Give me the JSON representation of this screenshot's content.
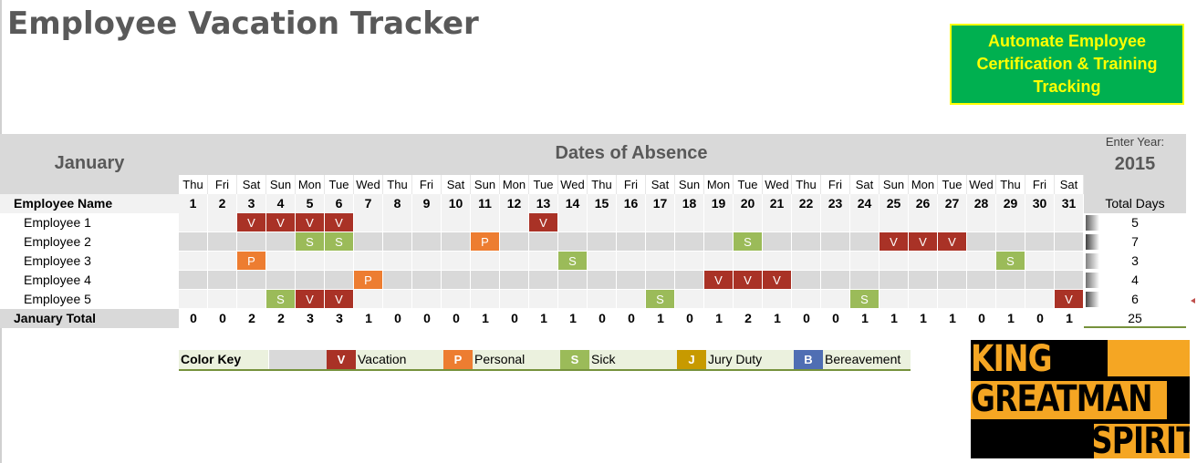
{
  "title": "Employee Vacation Tracker",
  "promo": {
    "text": "Automate Employee\nCertification & Training\nTracking"
  },
  "band": {
    "month": "January",
    "dates_title": "Dates of Absence",
    "year_label": "Enter Year:",
    "year": "2015"
  },
  "header": {
    "employee_name": "Employee Name",
    "total_days": "Total Days"
  },
  "days": {
    "dow": [
      "Thu",
      "Fri",
      "Sat",
      "Sun",
      "Mon",
      "Tue",
      "Wed",
      "Thu",
      "Fri",
      "Sat",
      "Sun",
      "Mon",
      "Tue",
      "Wed",
      "Thu",
      "Fri",
      "Sat",
      "Sun",
      "Mon",
      "Tue",
      "Wed",
      "Thu",
      "Fri",
      "Sat",
      "Sun",
      "Mon",
      "Tue",
      "Wed",
      "Thu",
      "Fri",
      "Sat"
    ],
    "dates": [
      "1",
      "2",
      "3",
      "4",
      "5",
      "6",
      "7",
      "8",
      "9",
      "10",
      "11",
      "12",
      "13",
      "14",
      "15",
      "16",
      "17",
      "18",
      "19",
      "20",
      "21",
      "22",
      "23",
      "24",
      "25",
      "26",
      "27",
      "28",
      "29",
      "30",
      "31"
    ]
  },
  "colors": {
    "V": "#a93226",
    "P": "#ed7d31",
    "S": "#9bbb59",
    "J": "#c79a00",
    "B": "#4f6eb3",
    "row_band": "#d9d9d9",
    "row_plain": "#f2f2f2"
  },
  "employees": [
    {
      "name": "Employee 1",
      "total": "5",
      "absences": {
        "3": "V",
        "4": "V",
        "5": "V",
        "6": "V",
        "13": "V"
      }
    },
    {
      "name": "Employee 2",
      "total": "7",
      "absences": {
        "5": "S",
        "6": "S",
        "11": "P",
        "20": "S",
        "25": "V",
        "26": "V",
        "27": "V"
      }
    },
    {
      "name": "Employee 3",
      "total": "3",
      "absences": {
        "3": "P",
        "14": "S",
        "29": "S"
      }
    },
    {
      "name": "Employee 4",
      "total": "4",
      "absences": {
        "7": "P",
        "19": "V",
        "20": "V",
        "21": "V"
      }
    },
    {
      "name": "Employee 5",
      "total": "6",
      "absences": {
        "4": "S",
        "5": "V",
        "6": "V",
        "17": "S",
        "24": "S",
        "31": "V"
      }
    }
  ],
  "totals": {
    "label": "January Total",
    "values": [
      "0",
      "0",
      "2",
      "2",
      "3",
      "3",
      "1",
      "0",
      "0",
      "0",
      "1",
      "0",
      "1",
      "1",
      "0",
      "0",
      "1",
      "0",
      "1",
      "2",
      "1",
      "0",
      "0",
      "1",
      "1",
      "1",
      "1",
      "0",
      "1",
      "0",
      "1"
    ],
    "grand": "25"
  },
  "color_key": {
    "label": "Color Key",
    "items": [
      {
        "code": "V",
        "label": "Vacation"
      },
      {
        "code": "P",
        "label": "Personal"
      },
      {
        "code": "S",
        "label": "Sick"
      },
      {
        "code": "J",
        "label": "Jury Duty"
      },
      {
        "code": "B",
        "label": "Bereavement"
      }
    ]
  },
  "logo": {
    "line1": "KING",
    "line2": "GREATMAN",
    "line3": "SPIRIT"
  }
}
